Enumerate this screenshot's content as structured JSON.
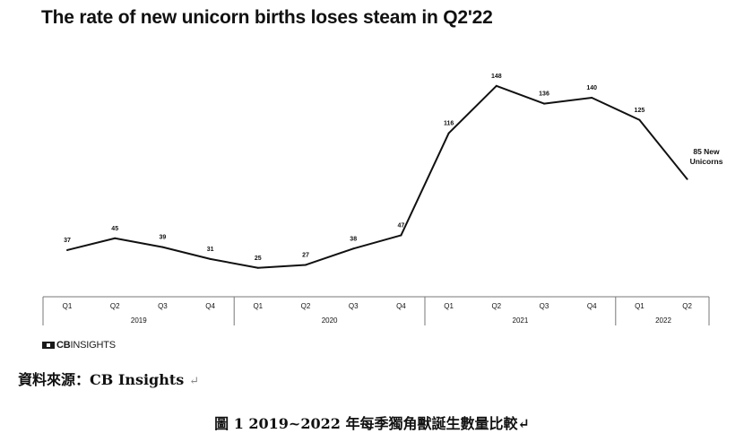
{
  "title": "The rate of new unicorn births loses steam in Q2'22",
  "chart_data": {
    "type": "line",
    "title": "The rate of new unicorn births loses steam in Q2'22",
    "categories": [
      "Q1",
      "Q2",
      "Q3",
      "Q4",
      "Q1",
      "Q2",
      "Q3",
      "Q4",
      "Q1",
      "Q2",
      "Q3",
      "Q4",
      "Q1",
      "Q2"
    ],
    "years": [
      {
        "label": "2019",
        "count": 4
      },
      {
        "label": "2020",
        "count": 4
      },
      {
        "label": "2021",
        "count": 4
      },
      {
        "label": "2022",
        "count": 2
      }
    ],
    "series": [
      {
        "values": [
          37,
          45,
          39,
          31,
          25,
          27,
          38,
          47,
          116,
          148,
          136,
          140,
          125,
          85
        ]
      }
    ],
    "value_labels": [
      "37",
      "45",
      "39",
      "31",
      "25",
      "27",
      "38",
      "47",
      "116",
      "148",
      "136",
      "140",
      "125",
      ""
    ],
    "annotation": [
      "85 New",
      "Unicorns"
    ],
    "line_color": "#111111",
    "grid": false,
    "legend": "none"
  },
  "logo": {
    "cb": "CB",
    "insights": "INSIGHTS"
  },
  "source_text": "資料來源：CB Insights",
  "return_mark": "↵",
  "caption": "圖 1 2019~2022 年每季獨角獸誕生數量比較↵"
}
